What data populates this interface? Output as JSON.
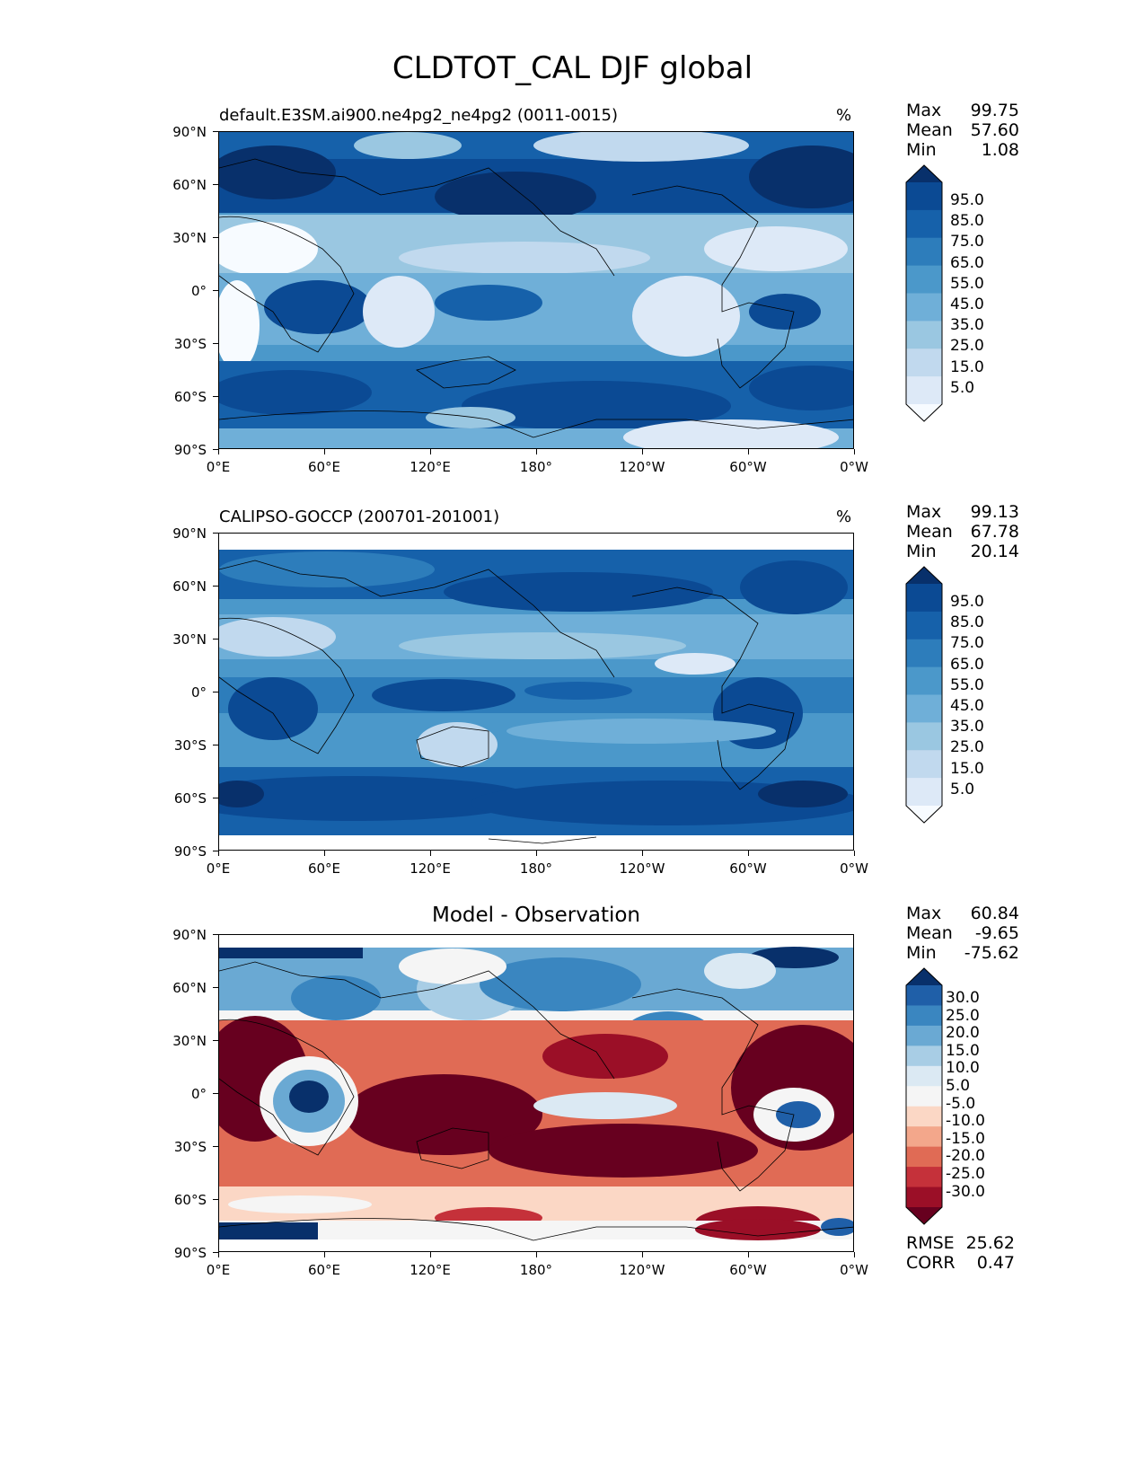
{
  "title": "CLDTOT_CAL DJF global",
  "lat_ticks": [
    "90°N",
    "60°N",
    "30°N",
    "0°",
    "30°S",
    "60°S",
    "90°S"
  ],
  "lon_ticks": [
    "0°E",
    "60°E",
    "120°E",
    "180°",
    "120°W",
    "60°W",
    "0°W"
  ],
  "panels": [
    {
      "title": "default.E3SM.ai900.ne4pg2_ne4pg2 (0011-0015)",
      "units": "%",
      "stats": [
        {
          "label": "Max",
          "value": "99.75"
        },
        {
          "label": "Mean",
          "value": "57.60"
        },
        {
          "label": "Min",
          "value": "1.08"
        }
      ],
      "colorbar_labels": [
        "95.0",
        "85.0",
        "75.0",
        "65.0",
        "55.0",
        "45.0",
        "35.0",
        "25.0",
        "15.0",
        "5.0"
      ],
      "colorbar_colors": [
        "#08306b",
        "#0b4a94",
        "#1661aa",
        "#2d7dbb",
        "#4b98ca",
        "#6fafd8",
        "#9ac7e1",
        "#c1d9ee",
        "#dde9f7",
        "#f7fbff"
      ],
      "zonal_profile": [
        {
          "lat": 75,
          "value": 90
        },
        {
          "lat": 50,
          "value": 80
        },
        {
          "lat": 25,
          "value": 35
        },
        {
          "lat": 0,
          "value": 50
        },
        {
          "lat": -25,
          "value": 35
        },
        {
          "lat": -55,
          "value": 85
        },
        {
          "lat": -80,
          "value": 55
        }
      ]
    },
    {
      "title": "CALIPSO-GOCCP (200701-201001)",
      "units": "%",
      "stats": [
        {
          "label": "Max",
          "value": "99.13"
        },
        {
          "label": "Mean",
          "value": "67.78"
        },
        {
          "label": "Min",
          "value": "20.14"
        }
      ],
      "colorbar_labels": [
        "95.0",
        "85.0",
        "75.0",
        "65.0",
        "55.0",
        "45.0",
        "35.0",
        "25.0",
        "15.0",
        "5.0"
      ],
      "colorbar_colors": [
        "#08306b",
        "#0b4a94",
        "#1661aa",
        "#2d7dbb",
        "#4b98ca",
        "#6fafd8",
        "#9ac7e1",
        "#c1d9ee",
        "#dde9f7",
        "#f7fbff"
      ],
      "zonal_profile": [
        {
          "lat": 75,
          "value": 70
        },
        {
          "lat": 50,
          "value": 80
        },
        {
          "lat": 25,
          "value": 45
        },
        {
          "lat": 0,
          "value": 65
        },
        {
          "lat": -25,
          "value": 60
        },
        {
          "lat": -55,
          "value": 90
        },
        {
          "lat": -75,
          "value": 80
        }
      ]
    },
    {
      "title": "Model - Observation",
      "units": "",
      "stats": [
        {
          "label": "Max",
          "value": "60.84"
        },
        {
          "label": "Mean",
          "value": "-9.65"
        },
        {
          "label": "Min",
          "value": "-75.62"
        }
      ],
      "colorbar_labels": [
        "30.0",
        "25.0",
        "20.0",
        "15.0",
        "10.0",
        "5.0",
        "-5.0",
        "-10.0",
        "-15.0",
        "-20.0",
        "-25.0",
        "-30.0"
      ],
      "colorbar_colors": [
        "#08306b",
        "#1f5fa8",
        "#3a86c0",
        "#6aa9d3",
        "#a8cde5",
        "#dbe9f3",
        "#f5f5f5",
        "#fbd7c5",
        "#f3a78b",
        "#e06b55",
        "#c5313a",
        "#9b0f27",
        "#67001f"
      ],
      "extra_stats": [
        {
          "label": "RMSE",
          "value": "25.62"
        },
        {
          "label": "CORR",
          "value": "0.47"
        }
      ]
    }
  ]
}
